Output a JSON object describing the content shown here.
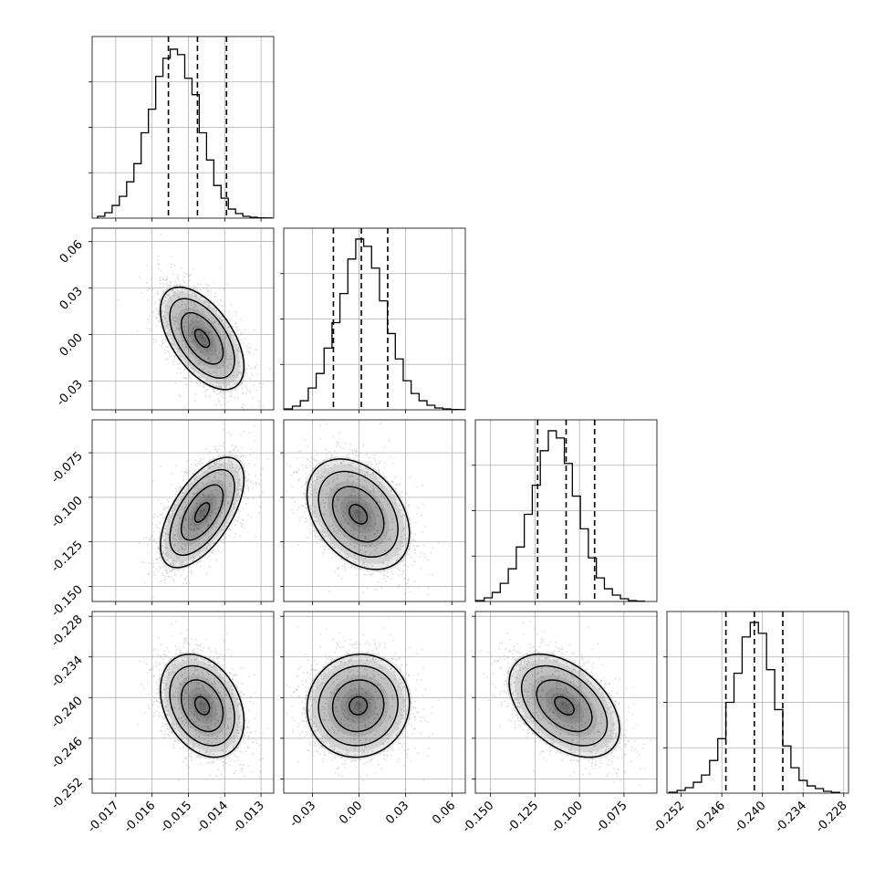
{
  "chart_data": [
    {
      "type": "histogram",
      "row": 0,
      "col": 0,
      "xlim": [
        -0.01765,
        -0.01265
      ],
      "ylim": [
        0,
        1.0
      ],
      "bin_edges": [
        -0.0175,
        -0.0173,
        -0.0171,
        -0.0169,
        -0.0167,
        -0.0165,
        -0.0163,
        -0.0161,
        -0.0159,
        -0.0157,
        -0.0155,
        -0.0153,
        -0.0151,
        -0.0149,
        -0.0147,
        -0.0145,
        -0.0143,
        -0.0141,
        -0.0139,
        -0.0137,
        -0.0135,
        -0.0133,
        -0.0131,
        -0.0129,
        -0.0127
      ],
      "counts": [
        0.01,
        0.03,
        0.07,
        0.12,
        0.2,
        0.3,
        0.47,
        0.6,
        0.78,
        0.88,
        0.93,
        0.9,
        0.77,
        0.68,
        0.47,
        0.32,
        0.18,
        0.11,
        0.05,
        0.025,
        0.01,
        0.005,
        0.002,
        0.001
      ],
      "quantiles": [
        -0.01555,
        -0.01475,
        -0.01395
      ]
    },
    {
      "type": "scatter_contour",
      "row": 1,
      "col": 0,
      "xlim": [
        -0.01765,
        -0.01265
      ],
      "ylim": [
        -0.0485,
        0.0685
      ],
      "center": [
        -0.01462,
        -0.0025
      ],
      "sd": [
        0.000575,
        0.0165
      ],
      "rho": -0.55,
      "n_points": 2200
    },
    {
      "type": "histogram",
      "row": 1,
      "col": 1,
      "xlim": [
        -0.0485,
        0.0685
      ],
      "ylim": [
        0,
        1.0
      ],
      "bin_edges": [
        -0.048,
        -0.0429,
        -0.0378,
        -0.0327,
        -0.0276,
        -0.0225,
        -0.0174,
        -0.0123,
        -0.0072,
        -0.0021,
        0.003,
        0.0081,
        0.0132,
        0.0183,
        0.0234,
        0.0285,
        0.0336,
        0.0387,
        0.0438,
        0.0489,
        0.054,
        0.0591,
        0.0642,
        0.0693
      ],
      "counts": [
        0.005,
        0.02,
        0.05,
        0.12,
        0.2,
        0.34,
        0.48,
        0.64,
        0.83,
        0.94,
        0.9,
        0.78,
        0.6,
        0.42,
        0.28,
        0.16,
        0.09,
        0.05,
        0.025,
        0.01,
        0.005,
        0.002,
        0.001
      ],
      "quantiles": [
        -0.0165,
        0.0015,
        0.0185
      ]
    },
    {
      "type": "scatter_contour",
      "row": 2,
      "col": 0,
      "xlim": [
        -0.01765,
        -0.01265
      ],
      "ylim": [
        -0.1585,
        -0.0565
      ],
      "center": [
        -0.01462,
        -0.1085
      ],
      "sd": [
        0.000575,
        0.0155
      ],
      "rho": 0.6,
      "n_points": 2200
    },
    {
      "type": "scatter_contour",
      "row": 2,
      "col": 1,
      "xlim": [
        -0.0485,
        0.0685
      ],
      "ylim": [
        -0.1585,
        -0.0565
      ],
      "center": [
        -0.0005,
        -0.1095
      ],
      "sd": [
        0.0165,
        0.0155
      ],
      "rho": -0.35,
      "n_points": 2200
    },
    {
      "type": "histogram",
      "row": 2,
      "col": 2,
      "xlim": [
        -0.1585,
        -0.0565
      ],
      "ylim": [
        0,
        1.0
      ],
      "bin_edges": [
        -0.158,
        -0.1535,
        -0.149,
        -0.1445,
        -0.14,
        -0.1355,
        -0.131,
        -0.1265,
        -0.122,
        -0.1175,
        -0.113,
        -0.1085,
        -0.104,
        -0.0995,
        -0.095,
        -0.0905,
        -0.086,
        -0.0815,
        -0.077,
        -0.0725,
        -0.068,
        -0.0635
      ],
      "counts": [
        0.005,
        0.02,
        0.05,
        0.1,
        0.18,
        0.3,
        0.48,
        0.64,
        0.83,
        0.94,
        0.9,
        0.76,
        0.58,
        0.4,
        0.24,
        0.13,
        0.07,
        0.035,
        0.015,
        0.005,
        0.002
      ],
      "quantiles": [
        -0.1235,
        -0.1075,
        -0.0915
      ]
    },
    {
      "type": "scatter_contour",
      "row": 3,
      "col": 0,
      "xlim": [
        -0.01765,
        -0.01265
      ],
      "ylim": [
        -0.2541,
        -0.2273
      ],
      "center": [
        -0.01462,
        -0.2412
      ],
      "sd": [
        0.000575,
        0.0038
      ],
      "rho": -0.3,
      "n_points": 2200
    },
    {
      "type": "scatter_contour",
      "row": 3,
      "col": 1,
      "xlim": [
        -0.0485,
        0.0685
      ],
      "ylim": [
        -0.2541,
        -0.2273
      ],
      "center": [
        -0.0005,
        -0.2412
      ],
      "sd": [
        0.0165,
        0.0038
      ],
      "rho": 0.05,
      "n_points": 2200
    },
    {
      "type": "scatter_contour",
      "row": 3,
      "col": 2,
      "xlim": [
        -0.1585,
        -0.0565
      ],
      "ylim": [
        -0.2541,
        -0.2273
      ],
      "center": [
        -0.1085,
        -0.2412
      ],
      "sd": [
        0.0155,
        0.0038
      ],
      "rho": -0.45,
      "n_points": 2200
    },
    {
      "type": "histogram",
      "row": 3,
      "col": 3,
      "xlim": [
        -0.2541,
        -0.2273
      ],
      "ylim": [
        0,
        1.0
      ],
      "bin_edges": [
        -0.2538,
        -0.2526,
        -0.2514,
        -0.2502,
        -0.249,
        -0.2478,
        -0.2466,
        -0.2454,
        -0.2442,
        -0.243,
        -0.2418,
        -0.2406,
        -0.2394,
        -0.2382,
        -0.237,
        -0.2358,
        -0.2346,
        -0.2334,
        -0.2322,
        -0.231,
        -0.2298,
        -0.2286
      ],
      "counts": [
        0.005,
        0.015,
        0.03,
        0.06,
        0.1,
        0.18,
        0.3,
        0.5,
        0.66,
        0.86,
        0.94,
        0.88,
        0.68,
        0.46,
        0.26,
        0.14,
        0.07,
        0.04,
        0.025,
        0.01,
        0.004
      ],
      "quantiles": [
        -0.2454,
        -0.2412,
        -0.237
      ]
    }
  ],
  "ticks": {
    "x": [
      [
        "-0.017",
        "-0.016",
        "-0.015",
        "-0.014",
        "-0.013"
      ],
      [
        "-0.03",
        "0.00",
        "0.03",
        "0.06"
      ],
      [
        "-0.150",
        "-0.125",
        "-0.100",
        "-0.075"
      ],
      [
        "-0.252",
        "-0.246",
        "-0.240",
        "-0.234",
        "-0.228"
      ]
    ],
    "y": [
      null,
      [
        "-0.03",
        "0.00",
        "0.03",
        "0.06"
      ],
      [
        "-0.150",
        "-0.125",
        "-0.100",
        "-0.075"
      ],
      [
        "-0.252",
        "-0.246",
        "-0.240",
        "-0.234",
        "-0.228"
      ]
    ]
  },
  "hist_y_ticks": [
    0.25,
    0.5,
    0.75
  ],
  "colors": {
    "line": "#000000",
    "grid": "#b0b0b0",
    "point": "#bdbdbd",
    "density": "#000000"
  }
}
